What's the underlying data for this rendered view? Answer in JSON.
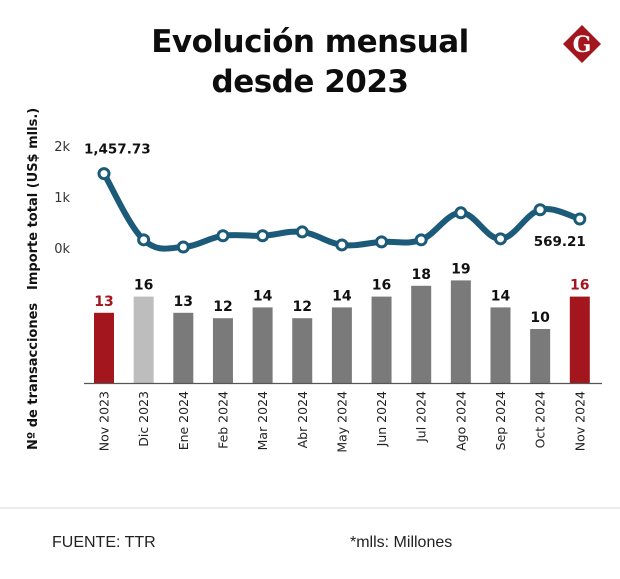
{
  "header": {
    "title_line1": "Evolución mensual",
    "title_line2": "desde 2023",
    "logo_letter": "G"
  },
  "footer": {
    "source": "FUENTE: TTR",
    "note": "*mlls: Millones"
  },
  "colors": {
    "line": "#1b5a78",
    "highlight_bar": "#a3161d",
    "previous_bar": "#bdbdbd",
    "default_bar": "#7a7a7a",
    "logo": "#a3161d"
  },
  "chart_data": [
    {
      "type": "line",
      "title": "Evolución mensual desde 2023",
      "ylabel": "Importe total (US$ mlls.)",
      "xlabel": "",
      "ylim": [
        0,
        2000
      ],
      "yticks": [
        0,
        1000,
        2000
      ],
      "ytick_labels": [
        "0k",
        "1k",
        "2k"
      ],
      "grid": false,
      "categories": [
        "Nov 2023",
        "Dic 2023",
        "Ene 2024",
        "Feb 2024",
        "Mar 2024",
        "Abr 2024",
        "May 2024",
        "Jun 2024",
        "Jul 2024",
        "Ago 2024",
        "Sep 2024",
        "Oct 2024",
        "Nov 2024"
      ],
      "series": [
        {
          "name": "Importe total",
          "values": [
            1457.73,
            160,
            20,
            240,
            240,
            315,
            60,
            120,
            160,
            690,
            180,
            750,
            569.21
          ]
        }
      ],
      "annotations": [
        {
          "category": "Nov 2023",
          "text": "1,457.73"
        },
        {
          "category": "Nov 2024",
          "text": "569.21"
        }
      ]
    },
    {
      "type": "bar",
      "ylabel": "Nº de transacciones",
      "xlabel": "",
      "ylim": [
        0,
        20
      ],
      "grid": false,
      "categories": [
        "Nov 2023",
        "Dic 2023",
        "Ene 2024",
        "Feb 2024",
        "Mar 2024",
        "Abr 2024",
        "May 2024",
        "Jun 2024",
        "Jul 2024",
        "Ago 2024",
        "Sep 2024",
        "Oct 2024",
        "Nov 2024"
      ],
      "values": [
        13,
        16,
        13,
        12,
        14,
        12,
        14,
        16,
        18,
        19,
        14,
        10,
        16
      ],
      "value_labels": [
        "13",
        "16",
        "13",
        "12",
        "14",
        "12",
        "14",
        "16",
        "18",
        "19",
        "14",
        "10",
        "16"
      ],
      "bar_styles": [
        "highlight",
        "previous",
        "default",
        "default",
        "default",
        "default",
        "default",
        "default",
        "default",
        "default",
        "default",
        "default",
        "highlight"
      ]
    }
  ]
}
